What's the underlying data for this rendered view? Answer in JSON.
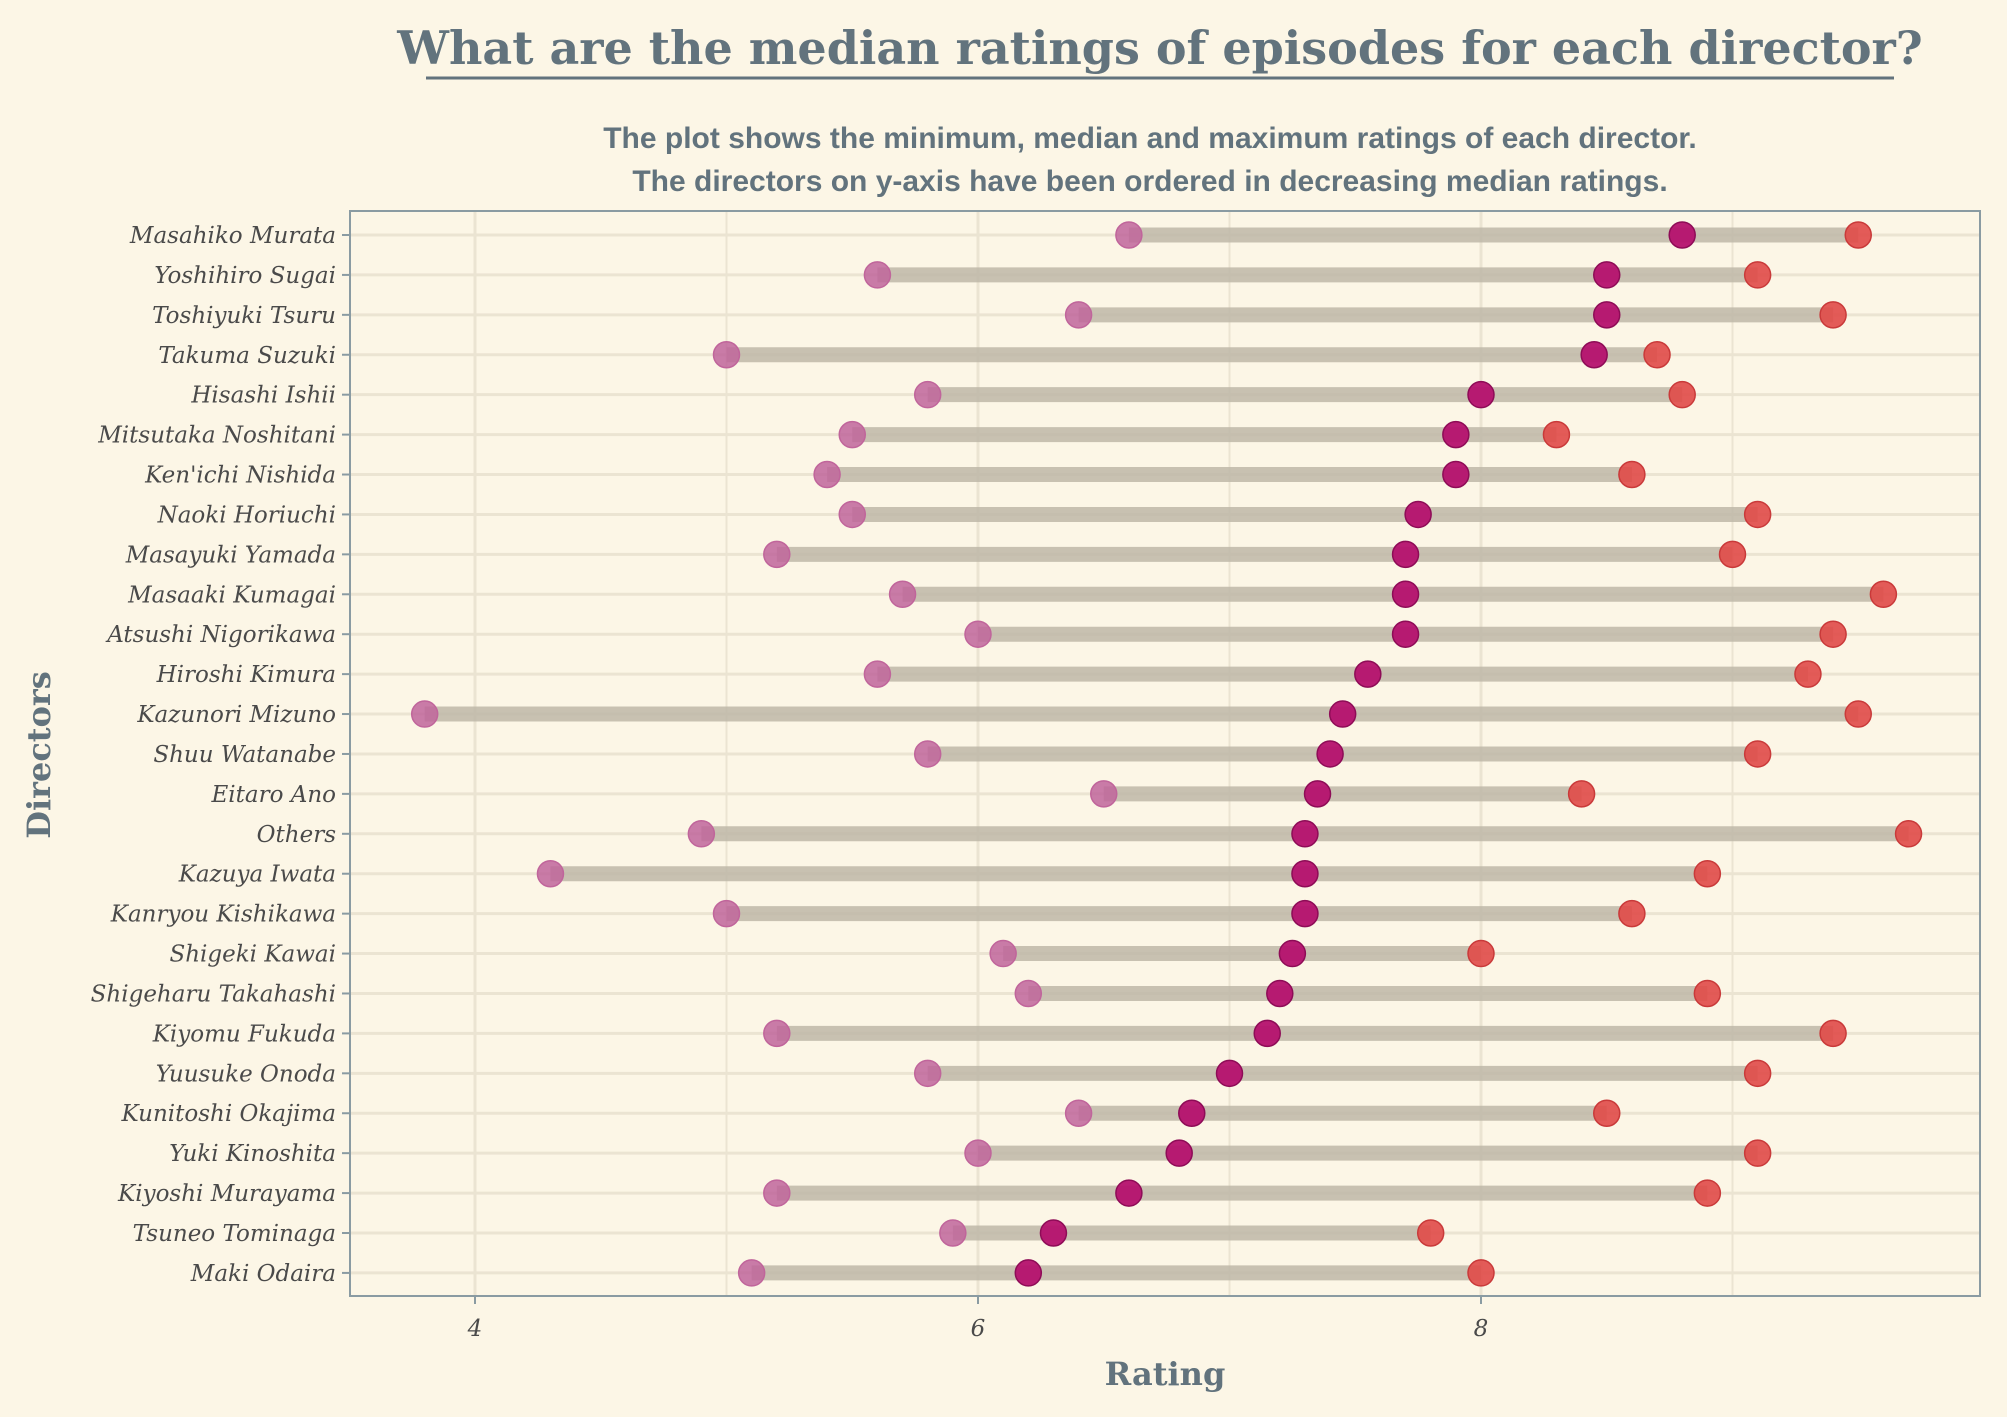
{
  "chart_data": {
    "type": "dumbbell",
    "title": "What are the median ratings of episodes for each director?",
    "subtitle": [
      "The plot shows the minimum, median and maximum ratings of each director.",
      "The directors on y-axis have been ordered in decreasing median ratings."
    ],
    "xlabel": "Rating",
    "ylabel": "Directors",
    "xlim": [
      3.5,
      9.95
    ],
    "xticks": [
      4,
      6,
      8
    ],
    "grid": true,
    "colors": {
      "min": "#c0659b",
      "median": "#b5116e",
      "max": "#e04a48",
      "range": "#bfb8a8"
    },
    "directors": [
      {
        "name": "Masahiko Murata",
        "min": 6.6,
        "median": 8.8,
        "max": 9.5
      },
      {
        "name": "Yoshihiro Sugai",
        "min": 5.6,
        "median": 8.5,
        "max": 9.1
      },
      {
        "name": "Toshiyuki Tsuru",
        "min": 6.4,
        "median": 8.5,
        "max": 9.4
      },
      {
        "name": "Takuma Suzuki",
        "min": 5.0,
        "median": 8.45,
        "max": 8.7
      },
      {
        "name": "Hisashi Ishii",
        "min": 5.8,
        "median": 8.0,
        "max": 8.8
      },
      {
        "name": "Mitsutaka Noshitani",
        "min": 5.5,
        "median": 7.9,
        "max": 8.3
      },
      {
        "name": "Ken'ichi Nishida",
        "min": 5.4,
        "median": 7.9,
        "max": 8.6
      },
      {
        "name": "Naoki Horiuchi",
        "min": 5.5,
        "median": 7.75,
        "max": 9.1
      },
      {
        "name": "Masayuki Yamada",
        "min": 5.2,
        "median": 7.7,
        "max": 9.0
      },
      {
        "name": "Masaaki Kumagai",
        "min": 5.7,
        "median": 7.7,
        "max": 9.6
      },
      {
        "name": "Atsushi Nigorikawa",
        "min": 6.0,
        "median": 7.7,
        "max": 9.4
      },
      {
        "name": "Hiroshi Kimura",
        "min": 5.6,
        "median": 7.55,
        "max": 9.3
      },
      {
        "name": "Kazunori Mizuno",
        "min": 3.8,
        "median": 7.45,
        "max": 9.5
      },
      {
        "name": "Shuu Watanabe",
        "min": 5.8,
        "median": 7.4,
        "max": 9.1
      },
      {
        "name": "Eitaro Ano",
        "min": 6.5,
        "median": 7.35,
        "max": 8.4
      },
      {
        "name": "Others",
        "min": 4.9,
        "median": 7.3,
        "max": 9.7
      },
      {
        "name": "Kazuya Iwata",
        "min": 4.3,
        "median": 7.3,
        "max": 8.9
      },
      {
        "name": "Kanryou Kishikawa",
        "min": 5.0,
        "median": 7.3,
        "max": 8.6
      },
      {
        "name": "Shigeki Kawai",
        "min": 6.1,
        "median": 7.25,
        "max": 8.0
      },
      {
        "name": "Shigeharu Takahashi",
        "min": 6.2,
        "median": 7.2,
        "max": 8.9
      },
      {
        "name": "Kiyomu Fukuda",
        "min": 5.2,
        "median": 7.15,
        "max": 9.4
      },
      {
        "name": "Yuusuke Onoda",
        "min": 5.8,
        "median": 7.0,
        "max": 9.1
      },
      {
        "name": "Kunitoshi Okajima",
        "min": 6.4,
        "median": 6.85,
        "max": 8.5
      },
      {
        "name": "Yuki Kinoshita",
        "min": 6.0,
        "median": 6.8,
        "max": 9.1
      },
      {
        "name": "Kiyoshi Murayama",
        "min": 5.2,
        "median": 6.6,
        "max": 8.9
      },
      {
        "name": "Tsuneo Tominaga",
        "min": 5.9,
        "median": 6.3,
        "max": 7.8
      },
      {
        "name": "Maki Odaira",
        "min": 5.1,
        "median": 6.2,
        "max": 8.0
      }
    ]
  }
}
